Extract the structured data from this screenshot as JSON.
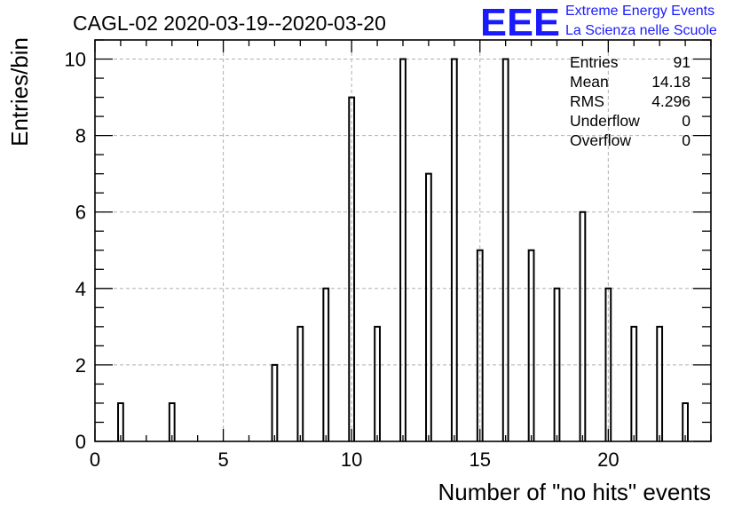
{
  "chart_data": {
    "type": "bar",
    "title": "CAGL-02 2020-03-19--2020-03-20",
    "xlabel": "Number of \"no hits\" events",
    "ylabel": "Entries/bin",
    "xlim": [
      0,
      24
    ],
    "ylim": [
      0,
      10.5
    ],
    "xticks": [
      0,
      5,
      10,
      15,
      20
    ],
    "yticks": [
      0,
      2,
      4,
      6,
      8,
      10
    ],
    "grid": true,
    "bin_width": 0.2,
    "categories": [
      1,
      3,
      7,
      8,
      9,
      10,
      11,
      12,
      13,
      14,
      15,
      16,
      17,
      18,
      19,
      20,
      21,
      22,
      23
    ],
    "values": [
      1,
      1,
      2,
      3,
      4,
      9,
      3,
      10,
      7,
      10,
      5,
      10,
      5,
      4,
      6,
      4,
      3,
      3,
      1
    ],
    "stats": [
      {
        "label": "Entries",
        "value": "91"
      },
      {
        "label": "Mean",
        "value": "14.18"
      },
      {
        "label": "RMS",
        "value": "4.296"
      },
      {
        "label": "Underflow",
        "value": "0"
      },
      {
        "label": "Overflow",
        "value": "0"
      }
    ]
  },
  "logo": {
    "letters": "EEE",
    "line1": "Extreme Energy Events",
    "line2": "La Scienza nelle Scuole",
    "color": "#1a1aff"
  }
}
